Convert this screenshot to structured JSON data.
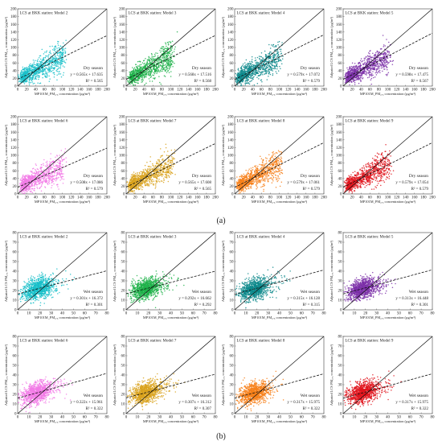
{
  "figure_labels": {
    "a": "(a)",
    "b": "(b)"
  },
  "chart_data": [
    {
      "type": "scatter",
      "panel": "a",
      "title": "LCS at BKK station: Model 2",
      "xlabel": "MP101M_PM₂.₅ concentration (µg/m³)",
      "ylabel": "Adjusted LCS PM₂.₅ concentration (µg/m³)",
      "xlim": [
        0,
        200
      ],
      "ylim": [
        0,
        200
      ],
      "xticks": [
        0,
        20,
        40,
        60,
        80,
        100,
        120,
        140,
        160,
        180,
        200
      ],
      "yticks": [
        0,
        20,
        40,
        60,
        80,
        100,
        120,
        140,
        160,
        180,
        200
      ],
      "season": "Dry season",
      "fit": {
        "slope": 0.565,
        "intercept": 17.635
      },
      "equation": "y = 0.565x + 17.635",
      "r2": 0.565,
      "r2_text": "R² = 0.565",
      "color": "#19c0c9",
      "reference_line": "1:1"
    },
    {
      "type": "scatter",
      "panel": "a",
      "title": "LCS at BKK station: Model 3",
      "xlabel": "MP101M_PM₂.₅ concentration (µg/m³)",
      "ylabel": "Adjusted LCS PM₂.₅ concentration (µg/m³)",
      "xlim": [
        0,
        200
      ],
      "ylim": [
        0,
        200
      ],
      "xticks": [
        0,
        20,
        40,
        60,
        80,
        100,
        120,
        140,
        160,
        180,
        200
      ],
      "yticks": [
        0,
        20,
        40,
        60,
        80,
        100,
        120,
        140,
        160,
        180,
        200
      ],
      "season": "Dry season",
      "fit": {
        "slope": 0.568,
        "intercept": 17.516
      },
      "equation": "y = 0.568x + 17.516",
      "r2": 0.568,
      "r2_text": "R² = 0.568",
      "color": "#1fb24a",
      "reference_line": "1:1"
    },
    {
      "type": "scatter",
      "panel": "a",
      "title": "LCS at BKK station: Model 4",
      "xlabel": "MP101M_PM₂.₅ concentration (µg/m³)",
      "ylabel": "Adjusted LCS PM₂.₅ concentration (µg/m³)",
      "xlim": [
        0,
        200
      ],
      "ylim": [
        0,
        200
      ],
      "xticks": [
        0,
        20,
        40,
        60,
        80,
        100,
        120,
        140,
        160,
        180,
        200
      ],
      "yticks": [
        0,
        20,
        40,
        60,
        80,
        100,
        120,
        140,
        160,
        180,
        200
      ],
      "season": "Dry season",
      "fit": {
        "slope": 0.579,
        "intercept": 17.072
      },
      "equation": "y = 0.579x + 17.072",
      "r2": 0.579,
      "r2_text": "R² = 0.579",
      "color": "#0e8a8c",
      "reference_line": "1:1"
    },
    {
      "type": "scatter",
      "panel": "a",
      "title": "LCS at BKK station: Model 5",
      "xlabel": "MP101M_PM₂.₅ concentration (µg/m³)",
      "ylabel": "Adjusted LCS PM₂.₅ concentration (µg/m³)",
      "xlim": [
        0,
        200
      ],
      "ylim": [
        0,
        200
      ],
      "xticks": [
        0,
        20,
        40,
        60,
        80,
        100,
        120,
        140,
        160,
        180,
        200
      ],
      "yticks": [
        0,
        20,
        40,
        60,
        80,
        100,
        120,
        140,
        160,
        180,
        200
      ],
      "season": "Dry season",
      "fit": {
        "slope": 0.598,
        "intercept": 17.475
      },
      "equation": "y = 0.598x + 17.475",
      "r2": 0.567,
      "r2_text": "R² = 0.567",
      "color": "#7b2fa8",
      "reference_line": "1:1"
    },
    {
      "type": "scatter",
      "panel": "a",
      "title": "LCS at BKK station: Model 6",
      "xlabel": "MP101M_PM₂.₅ concentration (µg/m³)",
      "ylabel": "Adjusted LCS PM₂.₅ concentration (µg/m³)",
      "xlim": [
        0,
        200
      ],
      "ylim": [
        0,
        200
      ],
      "xticks": [
        0,
        20,
        40,
        60,
        80,
        100,
        120,
        140,
        160,
        180,
        200
      ],
      "yticks": [
        0,
        20,
        40,
        60,
        80,
        100,
        120,
        140,
        160,
        180,
        200
      ],
      "season": "Dry season",
      "fit": {
        "slope": 0.508,
        "intercept": 17.086
      },
      "equation": "y = 0.508x + 17.086",
      "r2": 0.579,
      "r2_text": "R² = 0.579",
      "color": "#f27ae6",
      "reference_line": "1:1"
    },
    {
      "type": "scatter",
      "panel": "a",
      "title": "LCS at BKK station: Model 7",
      "xlabel": "MP101M_PM₂.₅ concentration (µg/m³)",
      "ylabel": "Adjusted LCS PM₂.₅ concentration (µg/m³)",
      "xlim": [
        0,
        200
      ],
      "ylim": [
        0,
        200
      ],
      "xticks": [
        0,
        20,
        40,
        60,
        80,
        100,
        120,
        140,
        160,
        180,
        200
      ],
      "yticks": [
        0,
        20,
        40,
        60,
        80,
        100,
        120,
        140,
        160,
        180,
        200
      ],
      "season": "Dry season",
      "fit": {
        "slope": 0.565,
        "intercept": 17.608
      },
      "equation": "y = 0.565x + 17.608",
      "r2": 0.565,
      "r2_text": "R² = 0.565",
      "color": "#d9a21c",
      "reference_line": "1:1"
    },
    {
      "type": "scatter",
      "panel": "a",
      "title": "LCS at BKK station: Model 8",
      "xlabel": "MP101M_PM₂.₅ concentration (µg/m³)",
      "ylabel": "Adjusted LCS PM₂.₅ concentration (µg/m³)",
      "xlim": [
        0,
        200
      ],
      "ylim": [
        0,
        200
      ],
      "xticks": [
        0,
        20,
        40,
        60,
        80,
        100,
        120,
        140,
        160,
        180,
        200
      ],
      "yticks": [
        0,
        20,
        40,
        60,
        80,
        100,
        120,
        140,
        160,
        180,
        200
      ],
      "season": "Dry season",
      "fit": {
        "slope": 0.579,
        "intercept": 17.061
      },
      "equation": "y = 0.579x + 17.061",
      "r2": 0.579,
      "r2_text": "R² = 0.579",
      "color": "#f7801a",
      "reference_line": "1:1"
    },
    {
      "type": "scatter",
      "panel": "a",
      "title": "LCS at BKK station: Model 9",
      "xlabel": "MP101M_PM₂.₅ concentration (µg/m³)",
      "ylabel": "Adjusted LCS PM₂.₅ concentration (µg/m³)",
      "xlim": [
        0,
        200
      ],
      "ylim": [
        0,
        200
      ],
      "xticks": [
        0,
        20,
        40,
        60,
        80,
        100,
        120,
        140,
        160,
        180,
        200
      ],
      "yticks": [
        0,
        20,
        40,
        60,
        80,
        100,
        120,
        140,
        160,
        180,
        200
      ],
      "season": "Dry season",
      "fit": {
        "slope": 0.579,
        "intercept": 17.054
      },
      "equation": "y = 0.579x + 17.054",
      "r2": 0.579,
      "r2_text": "R² = 0.579",
      "color": "#e0141c",
      "reference_line": "1:1"
    },
    {
      "type": "scatter",
      "panel": "b",
      "title": "LCS at BKK station: Model 2",
      "xlabel": "MP101M_PM₂.₅ concentration (µg/m³)",
      "ylabel": "Adjusted LCS PM₂.₅ concentration (µg/m³)",
      "xlim": [
        0,
        80
      ],
      "ylim": [
        0,
        80
      ],
      "xticks": [
        0,
        10,
        20,
        30,
        40,
        50,
        60,
        70,
        80
      ],
      "yticks": [
        0,
        10,
        20,
        30,
        40,
        50,
        60,
        70,
        80
      ],
      "season": "Wet season",
      "fit": {
        "slope": 0.301,
        "intercept": 16.372
      },
      "equation": "y = 0.301x + 16.372",
      "r2": 0.301,
      "r2_text": "R² = 0.301",
      "color": "#19c0c9",
      "reference_line": "1:1"
    },
    {
      "type": "scatter",
      "panel": "b",
      "title": "LCS at BKK station: Model 3",
      "xlabel": "MP101M_PM₂.₅ concentration (µg/m³)",
      "ylabel": "Adjusted LCS PM₂.₅ concentration (µg/m³)",
      "xlim": [
        0,
        80
      ],
      "ylim": [
        0,
        80
      ],
      "xticks": [
        0,
        10,
        20,
        30,
        40,
        50,
        60,
        70,
        80
      ],
      "yticks": [
        0,
        10,
        20,
        30,
        40,
        50,
        60,
        70,
        80
      ],
      "season": "Wet season",
      "fit": {
        "slope": 0.292,
        "intercept": 16.662
      },
      "equation": "y = 0.292x + 16.662",
      "r2": 0.292,
      "r2_text": "R² = 0.292",
      "color": "#1fb24a",
      "reference_line": "1:1"
    },
    {
      "type": "scatter",
      "panel": "b",
      "title": "LCS at BKK station: Model 4",
      "xlabel": "MP101M_PM₂.₅ concentration (µg/m³)",
      "ylabel": "Adjusted LCS PM₂.₅ concentration (µg/m³)",
      "xlim": [
        0,
        80
      ],
      "ylim": [
        0,
        80
      ],
      "xticks": [
        0,
        10,
        20,
        30,
        40,
        50,
        60,
        70,
        80
      ],
      "yticks": [
        0,
        10,
        20,
        30,
        40,
        50,
        60,
        70,
        80
      ],
      "season": "Wet season",
      "fit": {
        "slope": 0.315,
        "intercept": 16.128
      },
      "equation": "y = 0.315x + 16.128",
      "r2": 0.315,
      "r2_text": "R² = 0.315",
      "color": "#0e8a8c",
      "reference_line": "1:1"
    },
    {
      "type": "scatter",
      "panel": "b",
      "title": "LCS at BKK station: Model 5",
      "xlabel": "MP101M_PM₂.₅ concentration (µg/m³)",
      "ylabel": "Adjusted LCS PM₂.₅ concentration (µg/m³)",
      "xlim": [
        0,
        80
      ],
      "ylim": [
        0,
        80
      ],
      "xticks": [
        0,
        10,
        20,
        30,
        40,
        50,
        60,
        70,
        80
      ],
      "yticks": [
        0,
        10,
        20,
        30,
        40,
        50,
        60,
        70,
        80
      ],
      "season": "Wet season",
      "fit": {
        "slope": 0.313,
        "intercept": 16.448
      },
      "equation": "y = 0.313x + 16.448",
      "r2": 0.301,
      "r2_text": "R² = 0.301",
      "color": "#7b2fa8",
      "reference_line": "1:1"
    },
    {
      "type": "scatter",
      "panel": "b",
      "title": "LCS at BKK station: Model 6",
      "xlabel": "MP101M_PM₂.₅ concentration (µg/m³)",
      "ylabel": "Adjusted LCS PM₂.₅ concentration (µg/m³)",
      "xlim": [
        0,
        80
      ],
      "ylim": [
        0,
        80
      ],
      "xticks": [
        0,
        10,
        20,
        30,
        40,
        50,
        60,
        70,
        80
      ],
      "yticks": [
        0,
        10,
        20,
        30,
        40,
        50,
        60,
        70,
        80
      ],
      "season": "Wet season",
      "fit": {
        "slope": 0.322,
        "intercept": 15.961
      },
      "equation": "y = 0.322x + 15.961",
      "r2": 0.322,
      "r2_text": "R² = 0.322",
      "color": "#f27ae6",
      "reference_line": "1:1"
    },
    {
      "type": "scatter",
      "panel": "b",
      "title": "LCS at BKK station: Model 7",
      "xlabel": "MP101M_PM₂.₅ concentration (µg/m³)",
      "ylabel": "Adjusted LCS PM₂.₅ concentration (µg/m³)",
      "xlim": [
        0,
        80
      ],
      "ylim": [
        0,
        80
      ],
      "xticks": [
        0,
        10,
        20,
        30,
        40,
        50,
        60,
        70,
        80
      ],
      "yticks": [
        0,
        10,
        20,
        30,
        40,
        50,
        60,
        70,
        80
      ],
      "season": "Wet season",
      "fit": {
        "slope": 0.307,
        "intercept": 16.312
      },
      "equation": "y = 0.307x + 16.312",
      "r2": 0.307,
      "r2_text": "R² = 0.307",
      "color": "#d9a21c",
      "reference_line": "1:1"
    },
    {
      "type": "scatter",
      "panel": "b",
      "title": "LCS at BKK station: Model 8",
      "xlabel": "MP101M_PM₂.₅ concentration (µg/m³)",
      "ylabel": "Adjusted LCS PM₂.₅ concentration (µg/m³)",
      "xlim": [
        0,
        80
      ],
      "ylim": [
        0,
        80
      ],
      "xticks": [
        0,
        10,
        20,
        30,
        40,
        50,
        60,
        70,
        80
      ],
      "yticks": [
        0,
        10,
        20,
        30,
        40,
        50,
        60,
        70,
        80
      ],
      "season": "Wet season",
      "fit": {
        "slope": 0.317,
        "intercept": 15.975
      },
      "equation": "y = 0.317x + 15.975",
      "r2": 0.322,
      "r2_text": "R² = 0.322",
      "color": "#f7801a",
      "reference_line": "1:1"
    },
    {
      "type": "scatter",
      "panel": "b",
      "title": "LCS at BKK station: Model 9",
      "xlabel": "MP101M_PM₂.₅ concentration (µg/m³)",
      "ylabel": "Adjusted LCS PM₂.₅ concentration (µg/m³)",
      "xlim": [
        0,
        80
      ],
      "ylim": [
        0,
        80
      ],
      "xticks": [
        0,
        10,
        20,
        30,
        40,
        50,
        60,
        70,
        80
      ],
      "yticks": [
        0,
        10,
        20,
        30,
        40,
        50,
        60,
        70,
        80
      ],
      "season": "Wet season",
      "fit": {
        "slope": 0.317,
        "intercept": 15.975
      },
      "equation": "y = 0.317x + 15.975",
      "r2": 0.322,
      "r2_text": "R² = 0.322",
      "color": "#e0141c",
      "reference_line": "1:1"
    }
  ]
}
